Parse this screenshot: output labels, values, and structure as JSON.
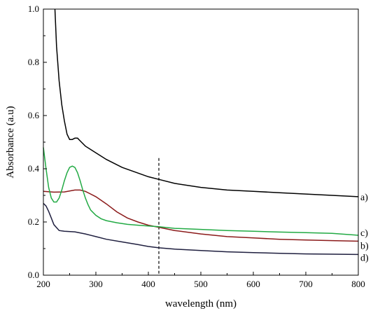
{
  "chart_data": {
    "type": "line",
    "xlabel": "wavelength (nm)",
    "ylabel": "Absorbance (a.u)",
    "xlim": [
      200,
      800
    ],
    "ylim": [
      0.0,
      1.0
    ],
    "x_ticks": [
      "200",
      "300",
      "400",
      "500",
      "600",
      "700",
      "800"
    ],
    "y_ticks": [
      "0.0",
      "0.2",
      "0.4",
      "0.6",
      "0.8",
      "1.0"
    ],
    "grid": false,
    "reference_line": {
      "x": 420,
      "style": "dashed"
    },
    "series": [
      {
        "name": "a)",
        "color": "#000000",
        "x": [
          222,
          225,
          230,
          235,
          240,
          245,
          250,
          255,
          260,
          265,
          270,
          280,
          300,
          320,
          350,
          400,
          420,
          450,
          500,
          550,
          600,
          650,
          700,
          750,
          800
        ],
        "y": [
          1.0,
          0.86,
          0.73,
          0.64,
          0.58,
          0.53,
          0.51,
          0.51,
          0.515,
          0.515,
          0.505,
          0.485,
          0.46,
          0.435,
          0.405,
          0.37,
          0.36,
          0.345,
          0.33,
          0.32,
          0.315,
          0.31,
          0.305,
          0.3,
          0.295
        ]
      },
      {
        "name": "b)",
        "color": "#8b1a1a",
        "x": [
          200,
          220,
          240,
          260,
          270,
          280,
          300,
          320,
          340,
          360,
          380,
          400,
          420,
          450,
          500,
          550,
          600,
          650,
          700,
          750,
          800
        ],
        "y": [
          0.315,
          0.312,
          0.313,
          0.32,
          0.32,
          0.315,
          0.295,
          0.268,
          0.238,
          0.215,
          0.2,
          0.188,
          0.18,
          0.168,
          0.155,
          0.145,
          0.14,
          0.135,
          0.132,
          0.13,
          0.128
        ]
      },
      {
        "name": "c)",
        "color": "#22aa44",
        "x": [
          200,
          205,
          210,
          215,
          220,
          225,
          230,
          235,
          240,
          245,
          250,
          255,
          260,
          265,
          270,
          275,
          280,
          285,
          290,
          300,
          310,
          320,
          340,
          360,
          380,
          400,
          420,
          450,
          500,
          550,
          600,
          650,
          700,
          750,
          800
        ],
        "y": [
          0.48,
          0.4,
          0.33,
          0.29,
          0.275,
          0.275,
          0.29,
          0.32,
          0.355,
          0.385,
          0.405,
          0.41,
          0.405,
          0.385,
          0.355,
          0.32,
          0.29,
          0.265,
          0.245,
          0.225,
          0.212,
          0.205,
          0.197,
          0.191,
          0.188,
          0.185,
          0.182,
          0.176,
          0.172,
          0.168,
          0.165,
          0.162,
          0.16,
          0.157,
          0.15
        ]
      },
      {
        "name": "d)",
        "color": "#1f1f3f",
        "x": [
          200,
          205,
          210,
          215,
          220,
          230,
          240,
          260,
          280,
          300,
          320,
          350,
          380,
          400,
          420,
          450,
          500,
          550,
          600,
          650,
          700,
          750,
          800
        ],
        "y": [
          0.27,
          0.26,
          0.24,
          0.215,
          0.19,
          0.168,
          0.165,
          0.163,
          0.155,
          0.145,
          0.135,
          0.125,
          0.115,
          0.108,
          0.103,
          0.098,
          0.093,
          0.088,
          0.085,
          0.082,
          0.08,
          0.079,
          0.078
        ]
      }
    ]
  }
}
